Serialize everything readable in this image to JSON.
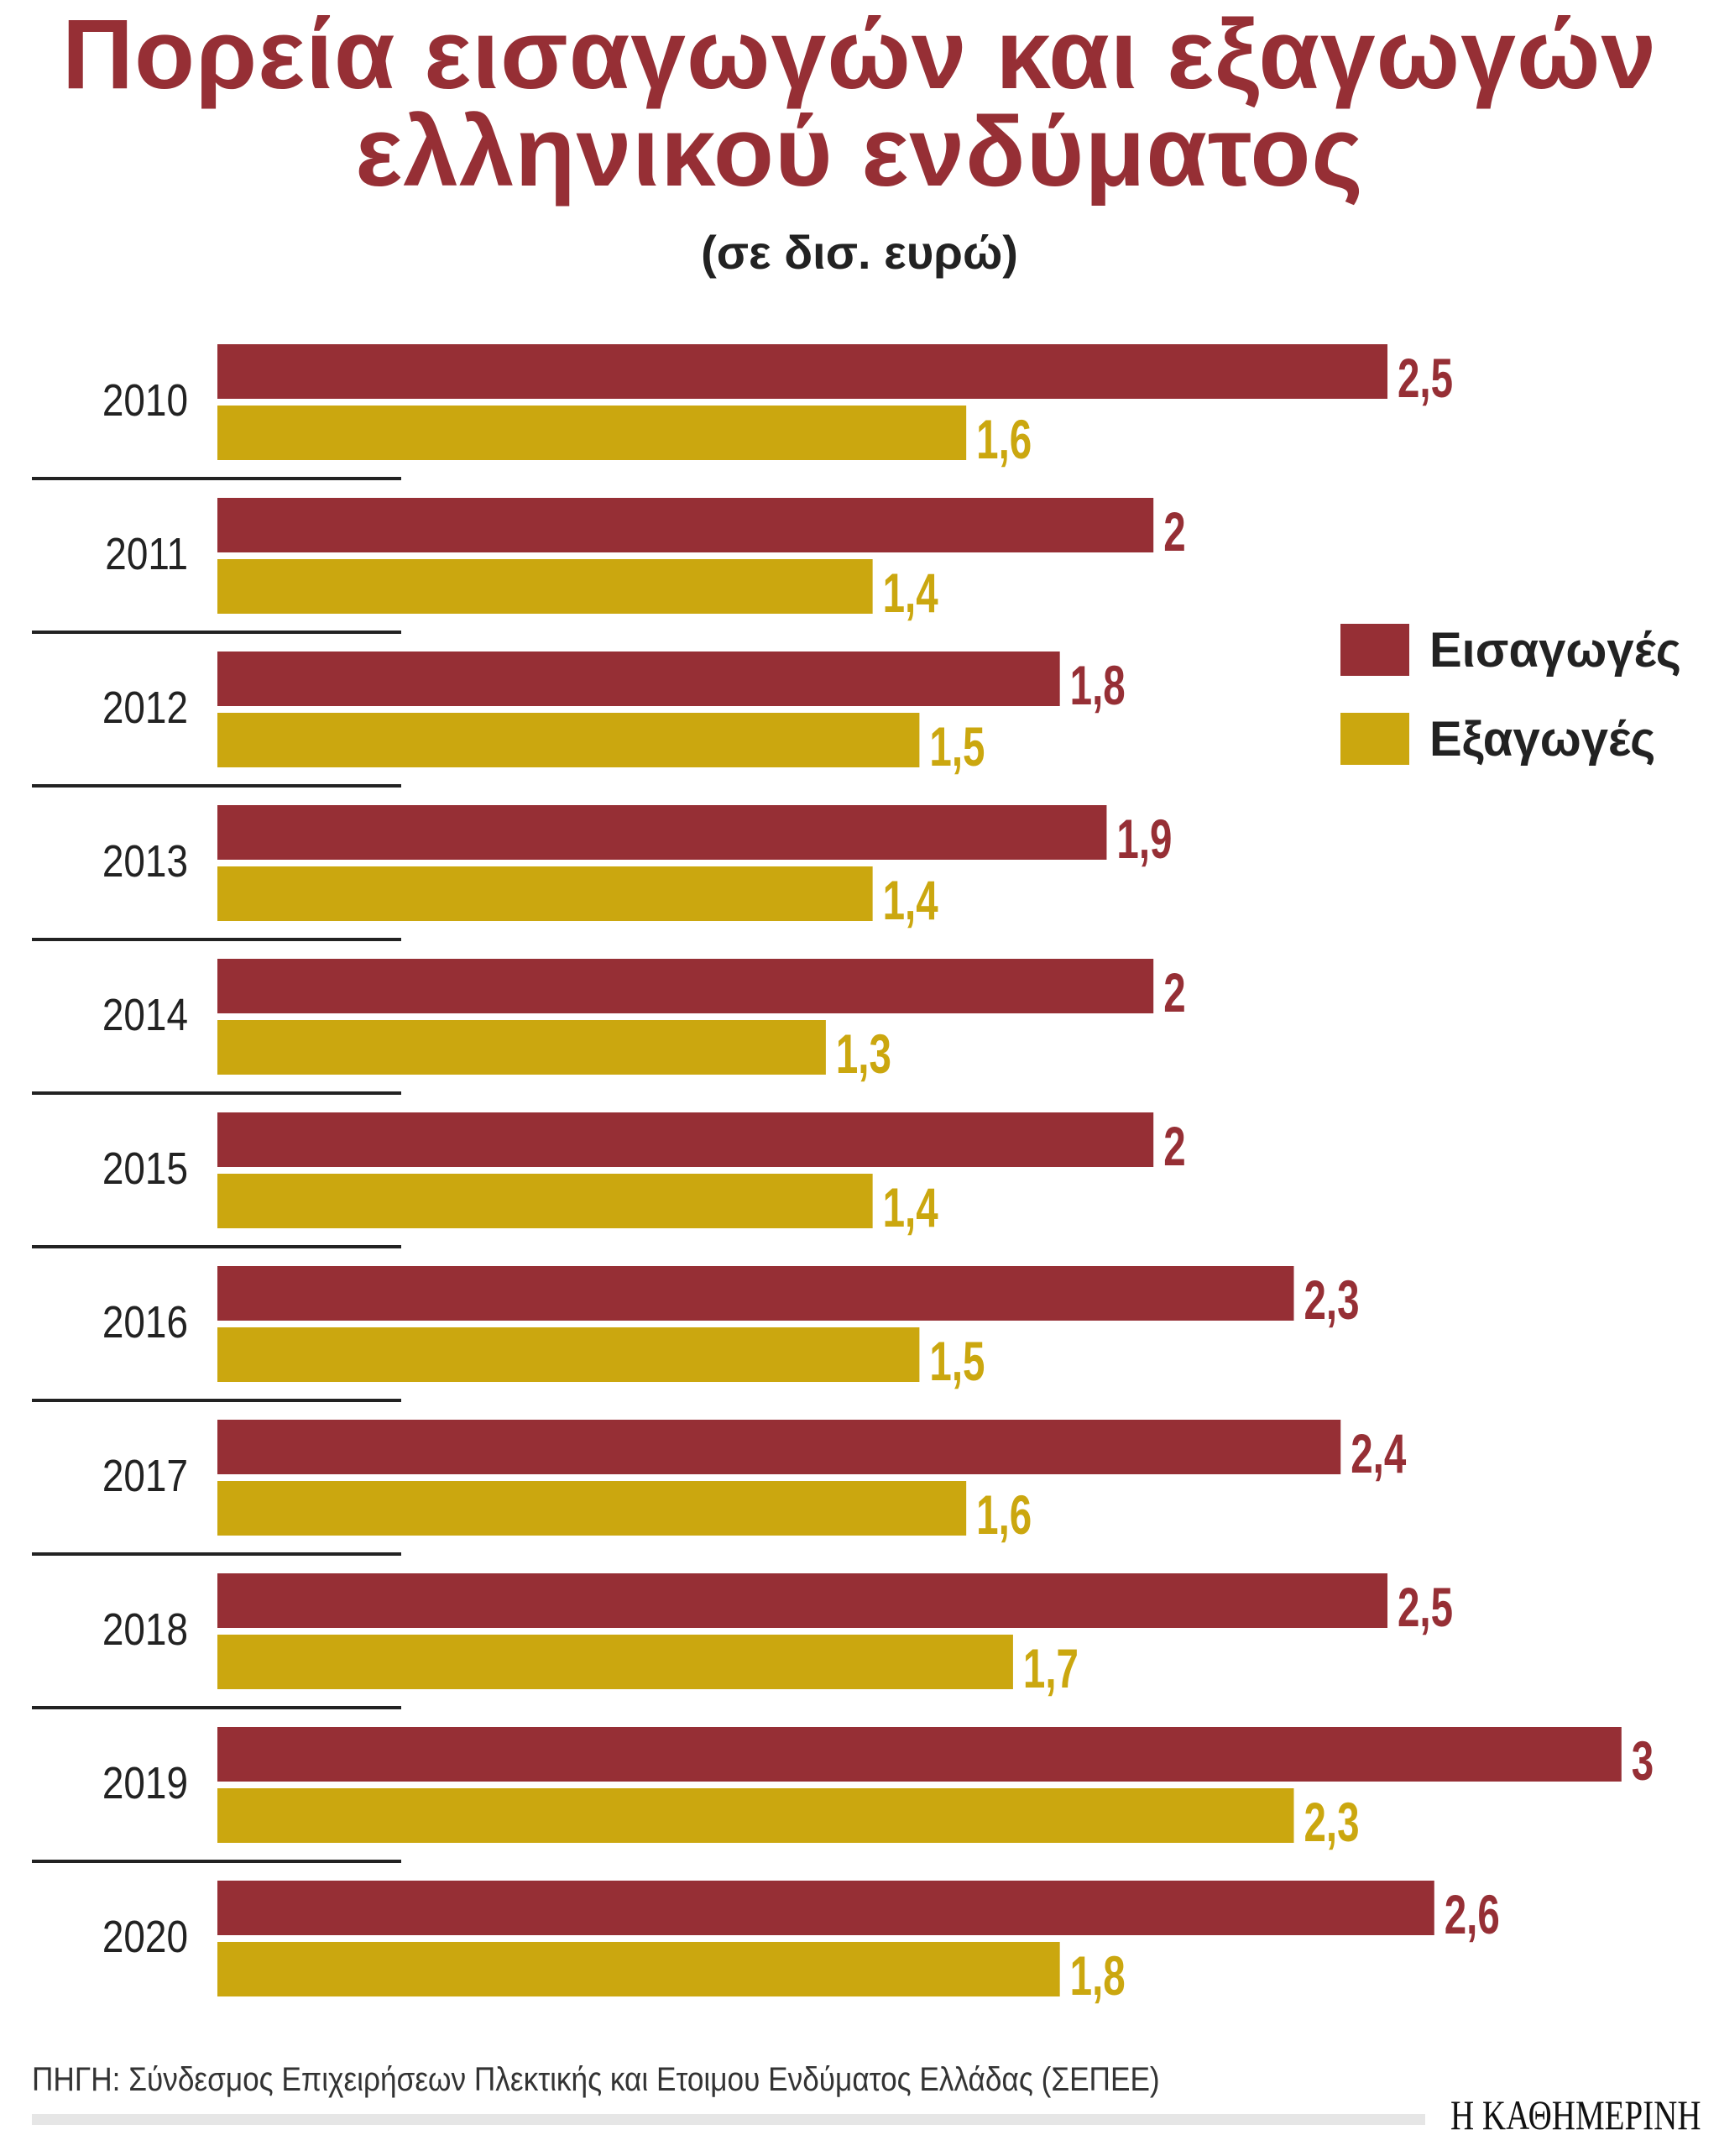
{
  "chart_data": {
    "type": "bar",
    "orientation": "horizontal",
    "title": "Πορεία εισαγωγών και εξαγωγών ελληνικού ενδύματος",
    "title_lines": [
      "Πορεία εισαγωγών και εξαγωγών",
      "ελληνικού ενδύματος"
    ],
    "subtitle": "(σε δισ. ευρώ)",
    "categories": [
      "2010",
      "2011",
      "2012",
      "2013",
      "2014",
      "2015",
      "2016",
      "2017",
      "2018",
      "2019",
      "2020"
    ],
    "series": [
      {
        "name": "Εισαγωγές",
        "color": "#962f35",
        "values": [
          2.5,
          2,
          1.8,
          1.9,
          2,
          2,
          2.3,
          2.4,
          2.5,
          3,
          2.6
        ],
        "labels": [
          "2,5",
          "2",
          "1,8",
          "1,9",
          "2",
          "2",
          "2,3",
          "2,4",
          "2,5",
          "3",
          "2,6"
        ]
      },
      {
        "name": "Εξαγωγές",
        "color": "#cba70f",
        "values": [
          1.6,
          1.4,
          1.5,
          1.4,
          1.3,
          1.4,
          1.5,
          1.6,
          1.7,
          2.3,
          1.8
        ],
        "labels": [
          "1,6",
          "1,4",
          "1,5",
          "1,4",
          "1,3",
          "1,4",
          "1,5",
          "1,6",
          "1,7",
          "2,3",
          "1,8"
        ]
      }
    ],
    "xlim": [
      0,
      3
    ],
    "grid": false,
    "legend": "right"
  },
  "footer": {
    "source": "ΠΗΓΗ: Σύνδεσμος Επιχειρήσεων Πλεκτικής και Ετοιμου Ενδύματος Ελλάδας (ΣΕΠΕΕ)",
    "brand": "Η ΚΑΘΗΜΕΡΙΝΗ"
  }
}
